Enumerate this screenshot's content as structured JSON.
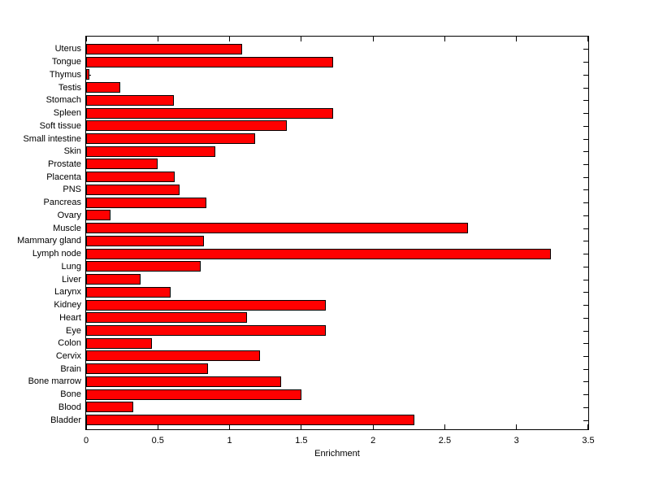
{
  "chart_data": {
    "type": "bar",
    "orientation": "horizontal",
    "title": "",
    "xlabel": "Enrichment",
    "ylabel": "",
    "xlim": [
      0,
      3.5
    ],
    "xticks": [
      0,
      0.5,
      1,
      1.5,
      2,
      2.5,
      3,
      3.5
    ],
    "xtick_labels": [
      "0",
      "0.5",
      "1",
      "1.5",
      "2",
      "2.5",
      "3",
      "3.5"
    ],
    "grid": false,
    "legend_position": "none",
    "bar_color": "#ff0000",
    "bar_edge_color": "#000000",
    "axis_color": "#000000",
    "background_color": "#ffffff",
    "categories_top_to_bottom": [
      "Uterus",
      "Tongue",
      "Thymus",
      "Testis",
      "Stomach",
      "Spleen",
      "Soft tissue",
      "Small intestine",
      "Skin",
      "Prostate",
      "Placenta",
      "PNS",
      "Pancreas",
      "Ovary",
      "Muscle",
      "Mammary gland",
      "Lymph node",
      "Lung",
      "Liver",
      "Larynx",
      "Kidney",
      "Heart",
      "Eye",
      "Colon",
      "Cervix",
      "Brain",
      "Bone marrow",
      "Bone",
      "Blood",
      "Bladder"
    ],
    "values": [
      1.09,
      1.72,
      0.02,
      0.24,
      0.61,
      1.72,
      1.4,
      1.18,
      0.9,
      0.5,
      0.62,
      0.65,
      0.84,
      0.17,
      2.66,
      0.82,
      3.24,
      0.8,
      0.38,
      0.59,
      1.67,
      1.12,
      1.67,
      0.46,
      1.21,
      0.85,
      1.36,
      1.5,
      0.33,
      2.29
    ]
  }
}
